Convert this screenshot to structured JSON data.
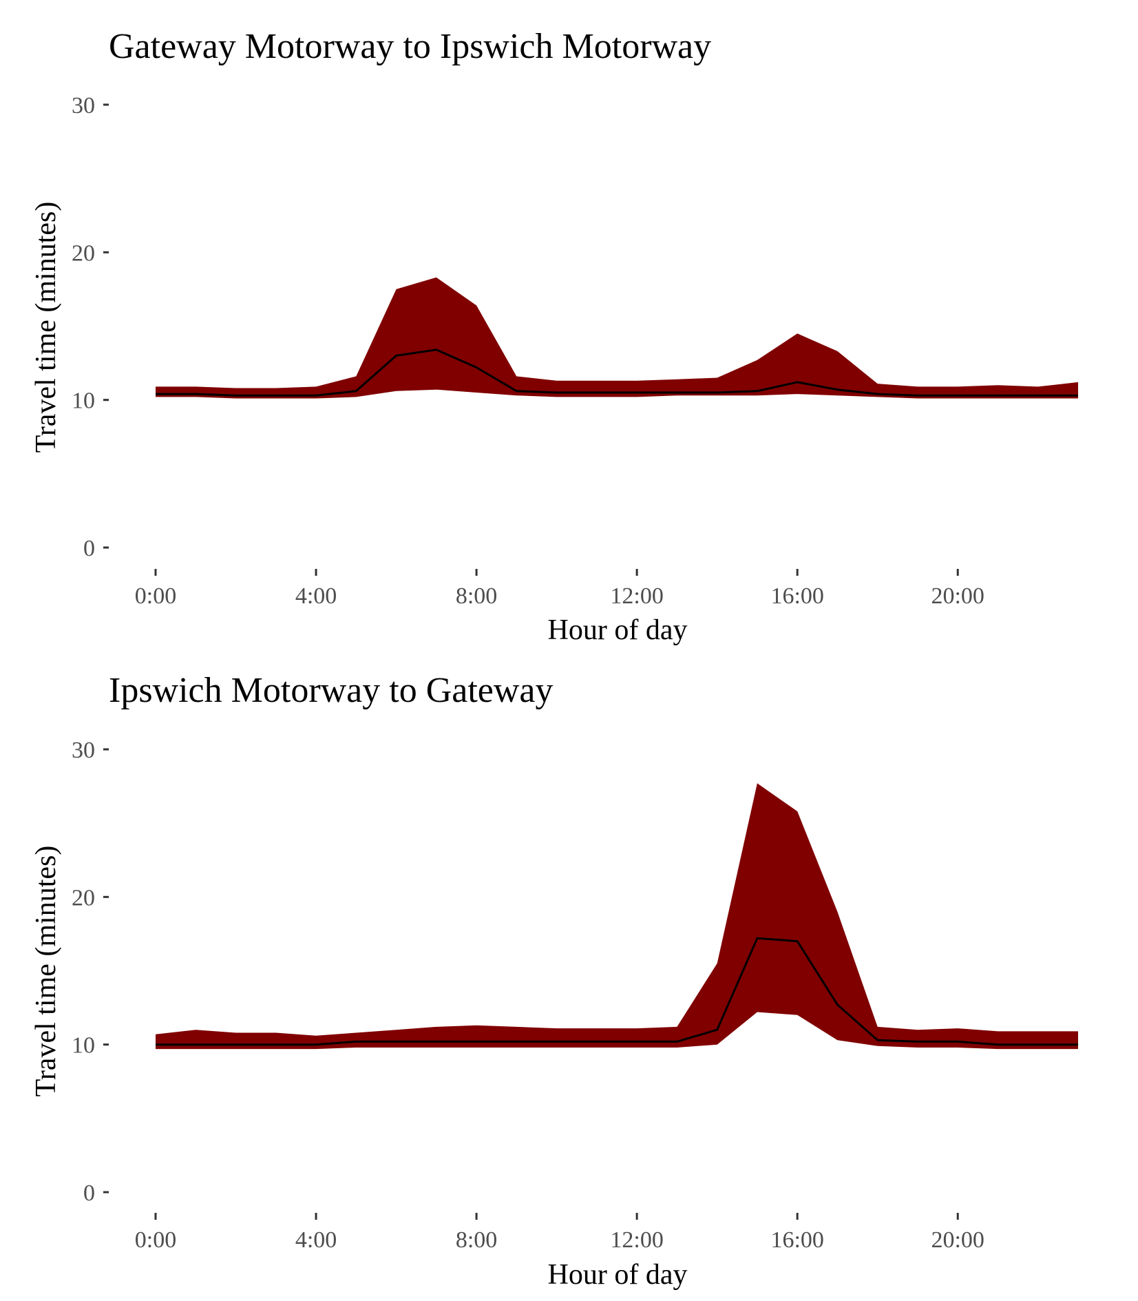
{
  "chart_data": [
    {
      "type": "area",
      "title": "Gateway Motorway to Ipswich Motorway",
      "xlabel": "Hour of day",
      "ylabel": "Travel time (minutes)",
      "ylim": [
        0,
        30
      ],
      "xlim": [
        0,
        23
      ],
      "x_ticks": [
        0,
        4,
        8,
        12,
        16,
        20
      ],
      "x_tick_labels": [
        "0:00",
        "4:00",
        "8:00",
        "12:00",
        "16:00",
        "20:00"
      ],
      "y_ticks": [
        0,
        10,
        20,
        30
      ],
      "y_tick_labels": [
        "0",
        "10",
        "20",
        "30"
      ],
      "grid": false,
      "band_color": "#800000",
      "line_color": "#000000",
      "x": [
        0,
        1,
        2,
        3,
        4,
        5,
        6,
        7,
        8,
        9,
        10,
        11,
        12,
        13,
        14,
        15,
        16,
        17,
        18,
        19,
        20,
        21,
        22,
        23
      ],
      "band_upper": [
        10.9,
        10.9,
        10.8,
        10.8,
        10.9,
        11.6,
        17.5,
        18.3,
        16.4,
        11.6,
        11.3,
        11.3,
        11.3,
        11.4,
        11.5,
        12.7,
        14.5,
        13.3,
        11.1,
        10.9,
        10.9,
        11.0,
        10.9,
        11.2
      ],
      "band_lower": [
        10.2,
        10.2,
        10.1,
        10.1,
        10.1,
        10.2,
        10.6,
        10.7,
        10.5,
        10.3,
        10.2,
        10.2,
        10.2,
        10.3,
        10.3,
        10.3,
        10.4,
        10.3,
        10.2,
        10.1,
        10.1,
        10.1,
        10.1,
        10.1
      ],
      "series": [
        {
          "values": [
            10.4,
            10.4,
            10.3,
            10.3,
            10.3,
            10.6,
            13.0,
            13.4,
            12.2,
            10.6,
            10.5,
            10.5,
            10.5,
            10.5,
            10.5,
            10.6,
            11.2,
            10.7,
            10.4,
            10.3,
            10.3,
            10.3,
            10.3,
            10.3
          ]
        }
      ]
    },
    {
      "type": "area",
      "title": "Ipswich Motorway to Gateway",
      "xlabel": "Hour of day",
      "ylabel": "Travel time (minutes)",
      "ylim": [
        0,
        30
      ],
      "xlim": [
        0,
        23
      ],
      "x_ticks": [
        0,
        4,
        8,
        12,
        16,
        20
      ],
      "x_tick_labels": [
        "0:00",
        "4:00",
        "8:00",
        "12:00",
        "16:00",
        "20:00"
      ],
      "y_ticks": [
        0,
        10,
        20,
        30
      ],
      "y_tick_labels": [
        "0",
        "10",
        "20",
        "30"
      ],
      "grid": false,
      "band_color": "#800000",
      "line_color": "#000000",
      "x": [
        0,
        1,
        2,
        3,
        4,
        5,
        6,
        7,
        8,
        9,
        10,
        11,
        12,
        13,
        14,
        15,
        16,
        17,
        18,
        19,
        20,
        21,
        22,
        23
      ],
      "band_upper": [
        10.7,
        11.0,
        10.8,
        10.8,
        10.6,
        10.8,
        11.0,
        11.2,
        11.3,
        11.2,
        11.1,
        11.1,
        11.1,
        11.2,
        15.5,
        27.7,
        25.8,
        19.0,
        11.2,
        11.0,
        11.1,
        10.9,
        10.9,
        10.9
      ],
      "band_lower": [
        9.7,
        9.7,
        9.7,
        9.7,
        9.7,
        9.8,
        9.8,
        9.8,
        9.8,
        9.8,
        9.8,
        9.8,
        9.8,
        9.8,
        10.0,
        12.2,
        12.0,
        10.3,
        9.9,
        9.8,
        9.8,
        9.7,
        9.7,
        9.7
      ],
      "series": [
        {
          "values": [
            10.0,
            10.0,
            10.0,
            10.0,
            10.0,
            10.2,
            10.2,
            10.2,
            10.2,
            10.2,
            10.2,
            10.2,
            10.2,
            10.2,
            11.0,
            17.2,
            17.0,
            12.7,
            10.3,
            10.2,
            10.2,
            10.0,
            10.0,
            10.0
          ]
        }
      ]
    }
  ]
}
